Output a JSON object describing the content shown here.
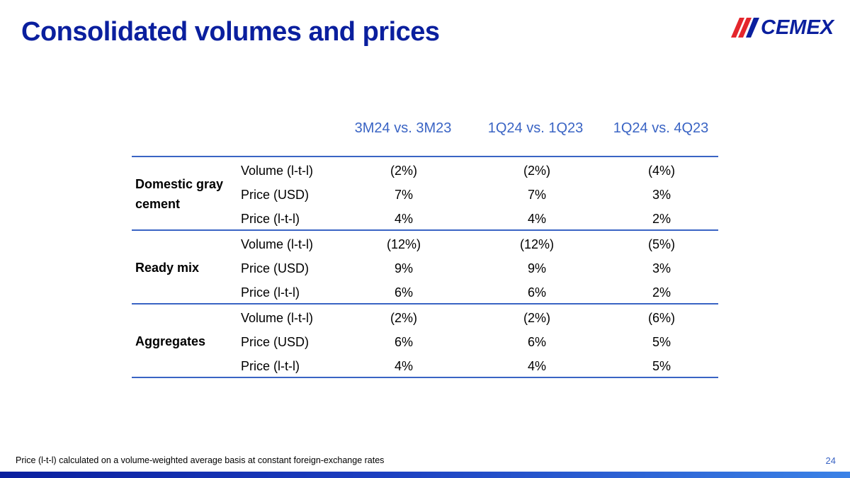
{
  "slide": {
    "title": "Consolidated volumes and prices",
    "logo_text": "CEMEX",
    "page_number": "24",
    "footnote": "Price (l-t-l) calculated on a volume-weighted average basis at constant foreign-exchange rates"
  },
  "table": {
    "columns": [
      "3M24 vs. 3M23",
      "1Q24 vs. 1Q23",
      "1Q24 vs. 4Q23"
    ],
    "groups": [
      {
        "label": "Domestic gray cement",
        "rows": [
          {
            "metric": "Volume (l-t-l)",
            "values": [
              "(2%)",
              "(2%)",
              "(4%)"
            ]
          },
          {
            "metric": "Price (USD)",
            "values": [
              "7%",
              "7%",
              "3%"
            ]
          },
          {
            "metric": "Price (l-t-l)",
            "values": [
              "4%",
              "4%",
              "2%"
            ]
          }
        ]
      },
      {
        "label": "Ready mix",
        "rows": [
          {
            "metric": "Volume (l-t-l)",
            "values": [
              "(12%)",
              "(12%)",
              "(5%)"
            ]
          },
          {
            "metric": "Price (USD)",
            "values": [
              "9%",
              "9%",
              "3%"
            ]
          },
          {
            "metric": "Price (l-t-l)",
            "values": [
              "6%",
              "6%",
              "2%"
            ]
          }
        ]
      },
      {
        "label": "Aggregates",
        "rows": [
          {
            "metric": "Volume (l-t-l)",
            "values": [
              "(2%)",
              "(2%)",
              "(6%)"
            ]
          },
          {
            "metric": "Price (USD)",
            "values": [
              "6%",
              "6%",
              "5%"
            ]
          },
          {
            "metric": "Price (l-t-l)",
            "values": [
              "4%",
              "4%",
              "5%"
            ]
          }
        ]
      }
    ]
  },
  "colors": {
    "title": "#0a1f9e",
    "accent": "#3a64c4",
    "logo_red": "#e4262c"
  }
}
